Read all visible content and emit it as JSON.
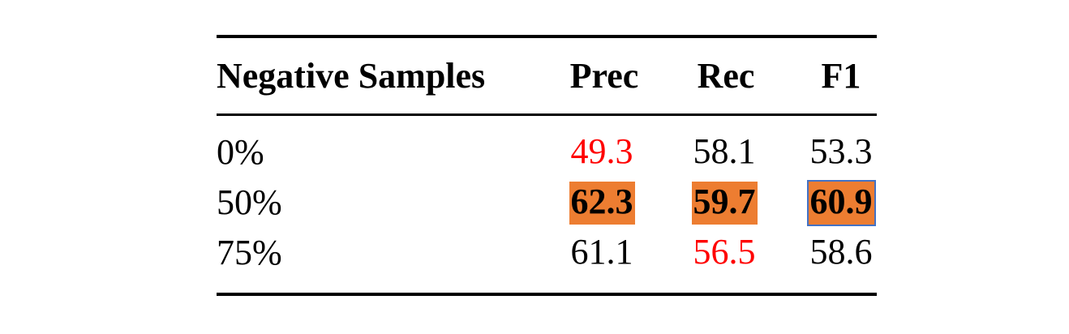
{
  "table": {
    "columns": [
      "Negative Samples",
      "Prec",
      "Rec",
      "F1"
    ],
    "rows": [
      {
        "label": "0%",
        "prec": "49.3",
        "rec": "58.1",
        "f1": "53.3"
      },
      {
        "label": "50%",
        "prec": "62.3",
        "rec": "59.7",
        "f1": "60.9"
      },
      {
        "label": "75%",
        "prec": "61.1",
        "rec": "56.5",
        "f1": "58.6"
      }
    ]
  },
  "colors": {
    "worst_value_text": "#ff0000",
    "best_value_highlight": "#ed7d31",
    "best_f1_border": "#4472c4"
  }
}
